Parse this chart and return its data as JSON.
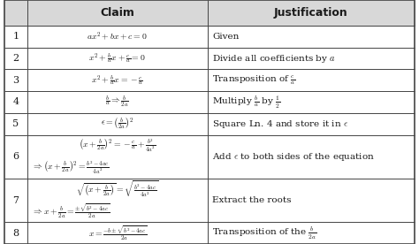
{
  "col_header_claim": "Claim",
  "col_header_just": "Justification",
  "rows": [
    {
      "step": "1",
      "claim_lines": [
        "$ax^2 + bx + c = 0$"
      ],
      "justification": "Given"
    },
    {
      "step": "2",
      "claim_lines": [
        "$x^2 + \\frac{b}{a}x + \\frac{c}{a} = 0$"
      ],
      "justification": "Divide all coefficients by $a$"
    },
    {
      "step": "3",
      "claim_lines": [
        "$x^2 + \\frac{b}{a}x = -\\frac{c}{a}$"
      ],
      "justification": "Transposition of $\\frac{c}{a}$"
    },
    {
      "step": "4",
      "claim_lines": [
        "$\\frac{b}{a} \\Rightarrow \\frac{b}{2a}$"
      ],
      "justification": "Multiply $\\frac{b}{a}$ by $\\frac{1}{2}$"
    },
    {
      "step": "5",
      "claim_lines": [
        "$\\epsilon = \\left(\\frac{b}{2a}\\right)^2$"
      ],
      "justification": "Square Ln. 4 and store it in $\\epsilon$"
    },
    {
      "step": "6",
      "claim_lines": [
        "$\\left(x + \\frac{b}{2a}\\right)^2 = -\\frac{c}{a} + \\frac{b^2}{4a^2}$",
        "$\\Rightarrow \\left(x + \\frac{b}{2a}\\right)^2 = \\frac{b^2-4ac}{4a^2}$"
      ],
      "justification": "Add $\\epsilon$ to both sides of the equation"
    },
    {
      "step": "7",
      "claim_lines": [
        "$\\sqrt{\\left(x + \\frac{b}{2a}\\right)} = \\sqrt{\\frac{b^2-4ac}{4a^2}}$",
        "$\\Rightarrow x + \\frac{b}{2a} = \\frac{\\pm\\sqrt{b^2-4ac}}{2a}$"
      ],
      "justification": "Extract the roots"
    },
    {
      "step": "8",
      "claim_lines": [
        "$x = \\frac{-b \\pm \\sqrt{b^2-4ac}}{2a}$"
      ],
      "justification": "Transposition of the $\\frac{b}{2a}$"
    }
  ],
  "header_bg": "#d8d8d8",
  "row_bg": "#ffffff",
  "border_color": "#444444",
  "text_color": "#1a1a1a",
  "fig_width": 4.74,
  "fig_height": 2.76,
  "dpi": 100
}
